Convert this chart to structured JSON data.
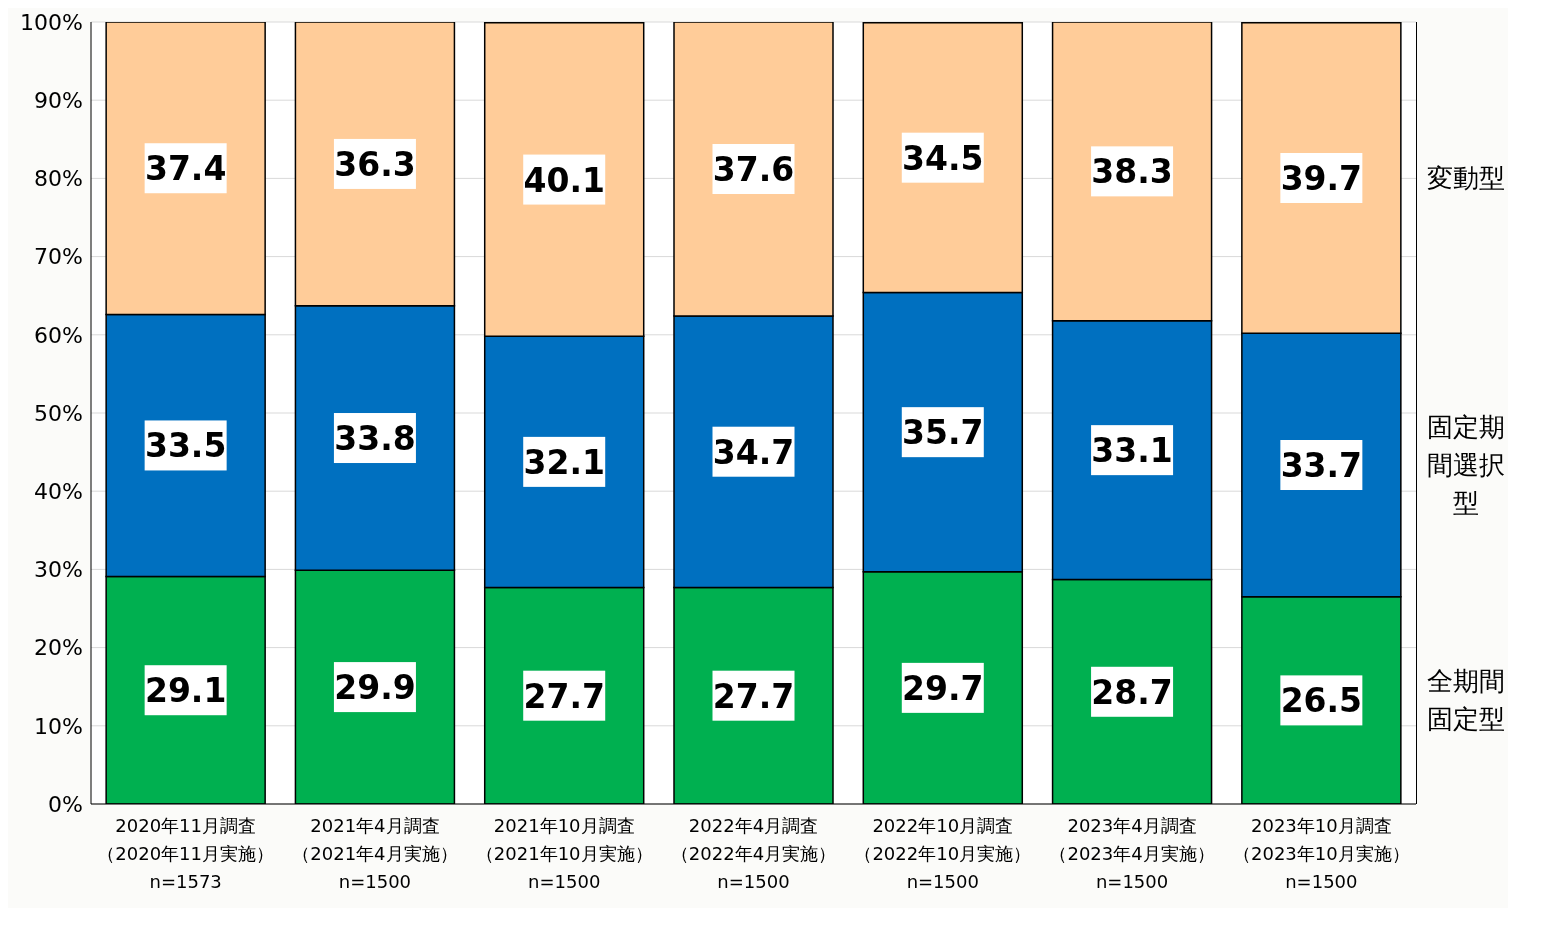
{
  "chart_data": {
    "type": "bar",
    "stacked": true,
    "categories": [
      "2020年11月調査（2020年11月実施）n=1573",
      "2021年4月調査（2021年4月実施）n=1500",
      "2021年10月調査（2021年10月実施）n=1500",
      "2022年4月調査（2022年4月実施）n=1500",
      "2022年10月調査（2022年10月実施）n=1500",
      "2023年4月調査（2023年4月実施）n=1500",
      "2023年10月調査（2023年10月実施）n=1500"
    ],
    "series": [
      {
        "name": "全期間固定型",
        "color": "#00b050",
        "values": [
          29.1,
          29.9,
          27.7,
          27.7,
          29.7,
          28.7,
          26.5
        ]
      },
      {
        "name": "固定期間選択型",
        "color": "#0070c0",
        "values": [
          33.5,
          33.8,
          32.1,
          34.7,
          35.7,
          33.1,
          33.7
        ]
      },
      {
        "name": "変動型",
        "color": "#ffcc99",
        "values": [
          37.4,
          36.3,
          40.1,
          37.6,
          34.5,
          38.3,
          39.7
        ]
      }
    ],
    "ylim": [
      0,
      100
    ],
    "yticks": [
      {
        "value": 0,
        "label": "0%"
      },
      {
        "value": 10,
        "label": "10%"
      },
      {
        "value": 20,
        "label": "20%"
      },
      {
        "value": 30,
        "label": "30%"
      },
      {
        "value": 40,
        "label": "40%"
      },
      {
        "value": 50,
        "label": "50%"
      },
      {
        "value": 60,
        "label": "60%"
      },
      {
        "value": 70,
        "label": "70%"
      },
      {
        "value": 80,
        "label": "80%"
      },
      {
        "value": 90,
        "label": "90%"
      },
      {
        "value": 100,
        "label": "100%"
      }
    ],
    "grid": "y",
    "data_labels": true
  }
}
